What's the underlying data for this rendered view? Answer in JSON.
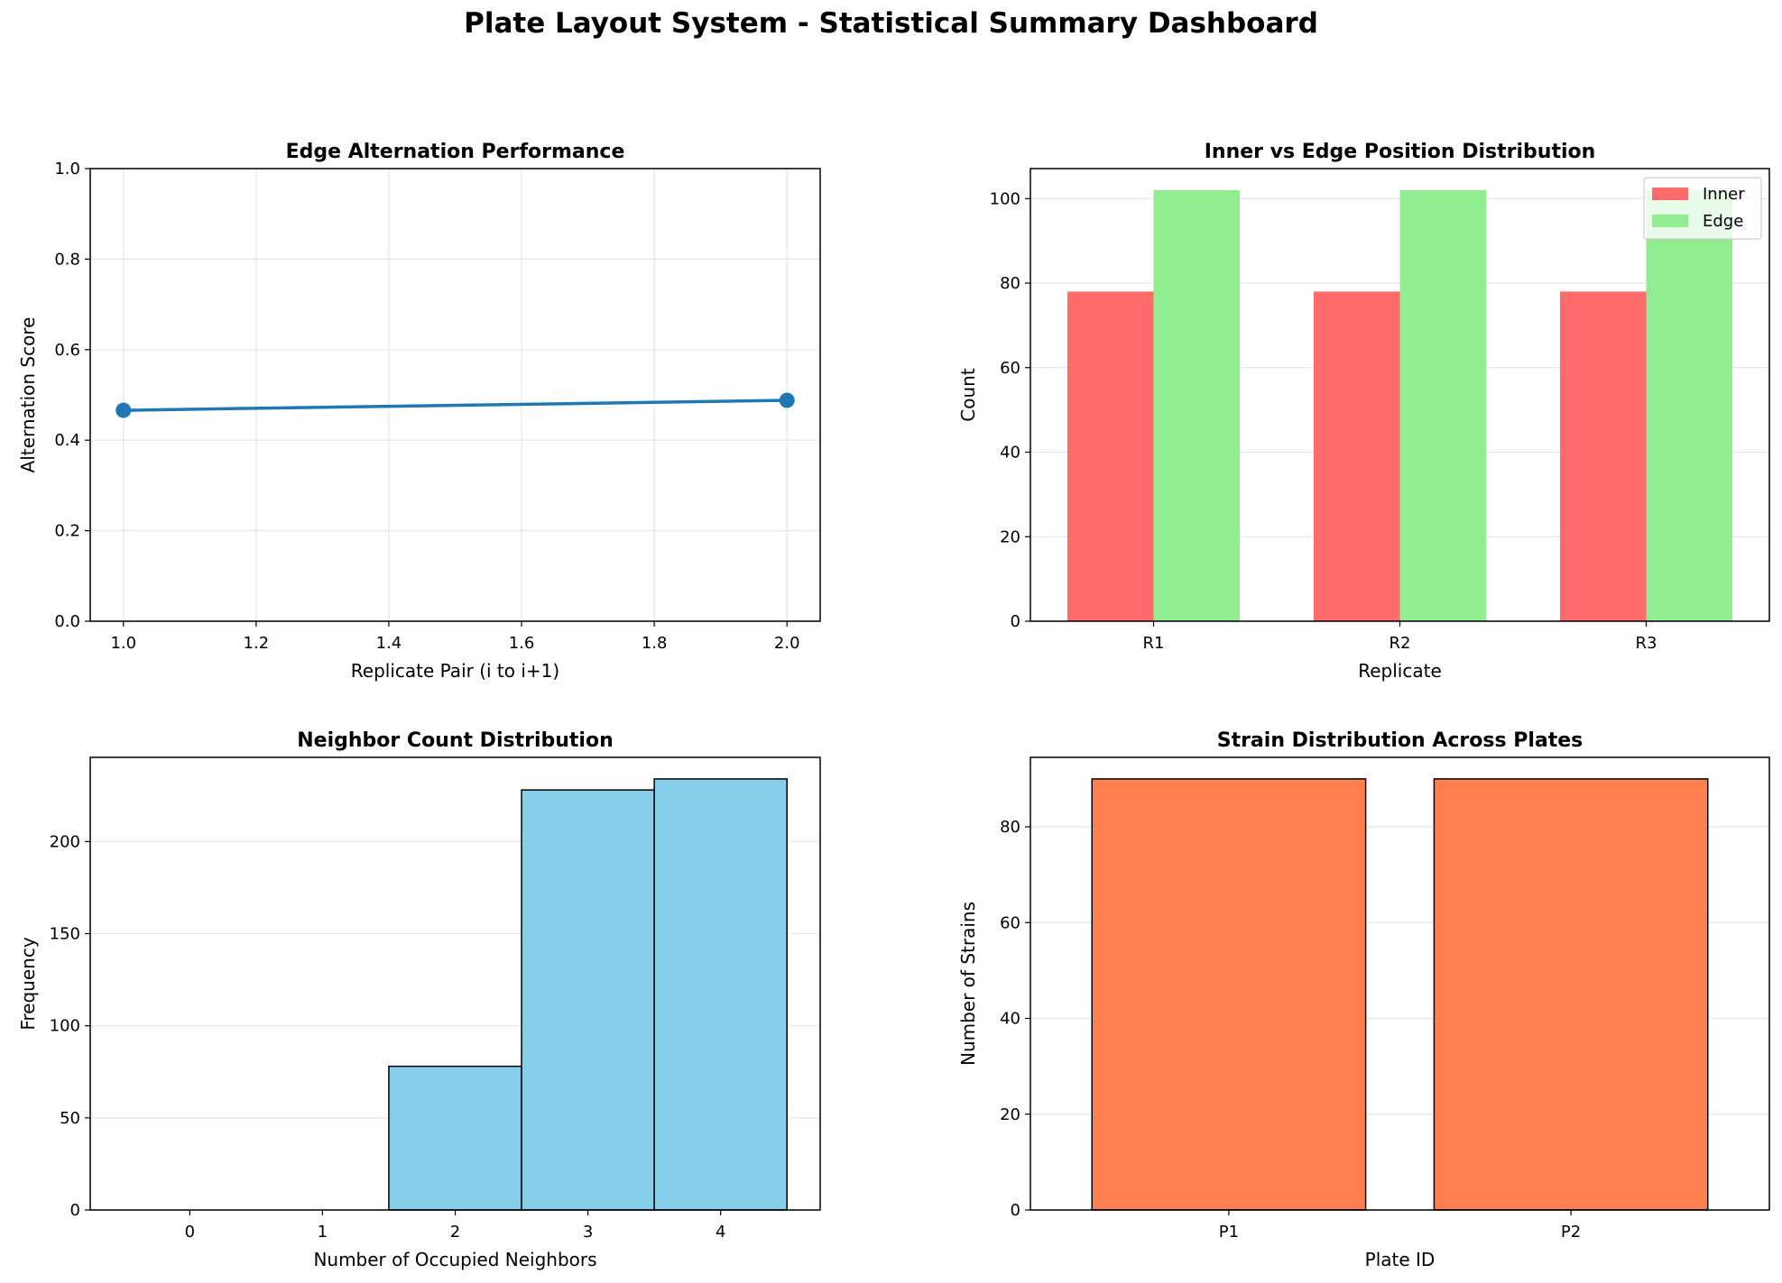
{
  "suptitle": "Plate Layout System - Statistical Summary Dashboard",
  "colors": {
    "line": "#1f77b4",
    "inner": "#ff6b6b",
    "edge": "#90ee90",
    "hist": "#87ceeb",
    "strain": "#ff7f50",
    "grid": "#e6e6e6"
  },
  "chart_data": [
    {
      "id": "edge-alternation",
      "type": "line",
      "title": "Edge Alternation Performance",
      "xlabel": "Replicate Pair (i to i+1)",
      "ylabel": "Alternation Score",
      "x": [
        1.0,
        2.0
      ],
      "y": [
        0.466,
        0.488
      ],
      "xlim": [
        0.95,
        2.05
      ],
      "ylim": [
        0,
        1
      ],
      "xticks": [
        "1.0",
        "1.2",
        "1.4",
        "1.6",
        "1.8",
        "2.0"
      ],
      "xtick_values": [
        1.0,
        1.2,
        1.4,
        1.6,
        1.8,
        2.0
      ],
      "yticks": [
        "0.0",
        "0.2",
        "0.4",
        "0.6",
        "0.8",
        "1.0"
      ],
      "ytick_values": [
        0,
        0.2,
        0.4,
        0.6,
        0.8,
        1.0
      ],
      "grid": true
    },
    {
      "id": "inner-vs-edge",
      "type": "bar",
      "title": "Inner vs Edge Position Distribution",
      "xlabel": "Replicate",
      "ylabel": "Count",
      "categories": [
        "R1",
        "R2",
        "R3"
      ],
      "series": [
        {
          "name": "Inner",
          "values": [
            78,
            78,
            78
          ]
        },
        {
          "name": "Edge",
          "values": [
            102,
            102,
            102
          ]
        }
      ],
      "ylim": [
        0,
        107.1
      ],
      "yticks": [
        "0",
        "20",
        "40",
        "60",
        "80",
        "100"
      ],
      "ytick_values": [
        0,
        20,
        40,
        60,
        80,
        100
      ],
      "legend": "top-right",
      "grid": "y"
    },
    {
      "id": "neighbor-count",
      "type": "bar",
      "title": "Neighbor Count Distribution",
      "xlabel": "Number of Occupied Neighbors",
      "ylabel": "Frequency",
      "categories": [
        "0",
        "1",
        "2",
        "3",
        "4"
      ],
      "values": [
        0,
        0,
        78,
        228,
        234
      ],
      "ylim": [
        0,
        245.7
      ],
      "yticks": [
        "0",
        "50",
        "100",
        "150",
        "200"
      ],
      "ytick_values": [
        0,
        50,
        100,
        150,
        200
      ],
      "grid": "y"
    },
    {
      "id": "strain-distribution",
      "type": "bar",
      "title": "Strain Distribution Across Plates",
      "xlabel": "Plate ID",
      "ylabel": "Number of Strains",
      "categories": [
        "P1",
        "P2"
      ],
      "values": [
        90,
        90
      ],
      "ylim": [
        0,
        94.5
      ],
      "yticks": [
        "0",
        "20",
        "40",
        "60",
        "80"
      ],
      "ytick_values": [
        0,
        20,
        40,
        60,
        80
      ],
      "grid": "y"
    }
  ]
}
